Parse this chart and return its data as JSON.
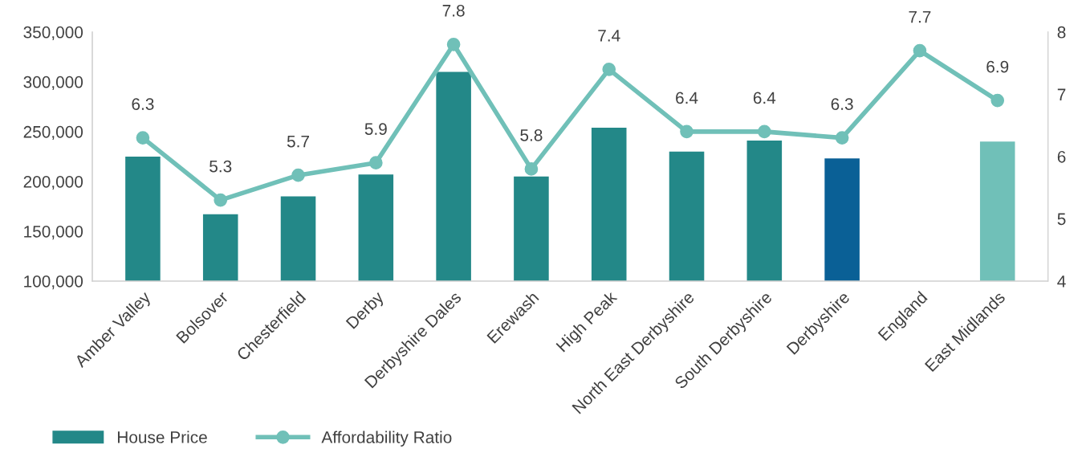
{
  "chart_data": {
    "type": "bar",
    "categories": [
      "Amber Valley",
      "Bolsover",
      "Chesterfield",
      "Derby",
      "Derbyshire Dales",
      "Erewash",
      "High Peak",
      "North East Derbyshire",
      "South Derbyshire",
      "Derbyshire",
      "England",
      "East Midlands"
    ],
    "series": [
      {
        "name": "House Price",
        "color": "#238888",
        "colors": [
          "#238888",
          "#238888",
          "#238888",
          "#238888",
          "#238888",
          "#238888",
          "#238888",
          "#238888",
          "#238888",
          "#0a6096",
          "#238888",
          "#70c0b8"
        ],
        "values": [
          225000,
          167000,
          185000,
          207000,
          310000,
          205000,
          254000,
          230000,
          241000,
          223000,
          null,
          240000
        ]
      },
      {
        "name": "Affordability Ratio",
        "type": "line",
        "axis": "y2",
        "color": "#70c0b8",
        "values": [
          6.3,
          5.3,
          5.7,
          5.9,
          7.8,
          5.8,
          7.4,
          6.4,
          6.4,
          6.3,
          7.7,
          6.9
        ],
        "value_labels": [
          "6.3",
          "5.3",
          "5.7",
          "5.9",
          "7.8",
          "5.8",
          "7.4",
          "6.4",
          "6.4",
          "6.3",
          "7.7",
          "6.9"
        ]
      }
    ],
    "ylim": [
      100000,
      350000
    ],
    "yticks": [
      {
        "value": 100000,
        "label": "100,000"
      },
      {
        "value": 150000,
        "label": "150,000"
      },
      {
        "value": 200000,
        "label": "200,000"
      },
      {
        "value": 250000,
        "label": "250,000"
      },
      {
        "value": 300000,
        "label": "300,000"
      },
      {
        "value": 350000,
        "label": "350,000"
      }
    ],
    "y2lim": [
      4,
      8
    ],
    "y2ticks": [
      4,
      5,
      6,
      7,
      8
    ],
    "marker": "circle",
    "line_style": "solid",
    "grid": false,
    "legend": "bottom left"
  }
}
